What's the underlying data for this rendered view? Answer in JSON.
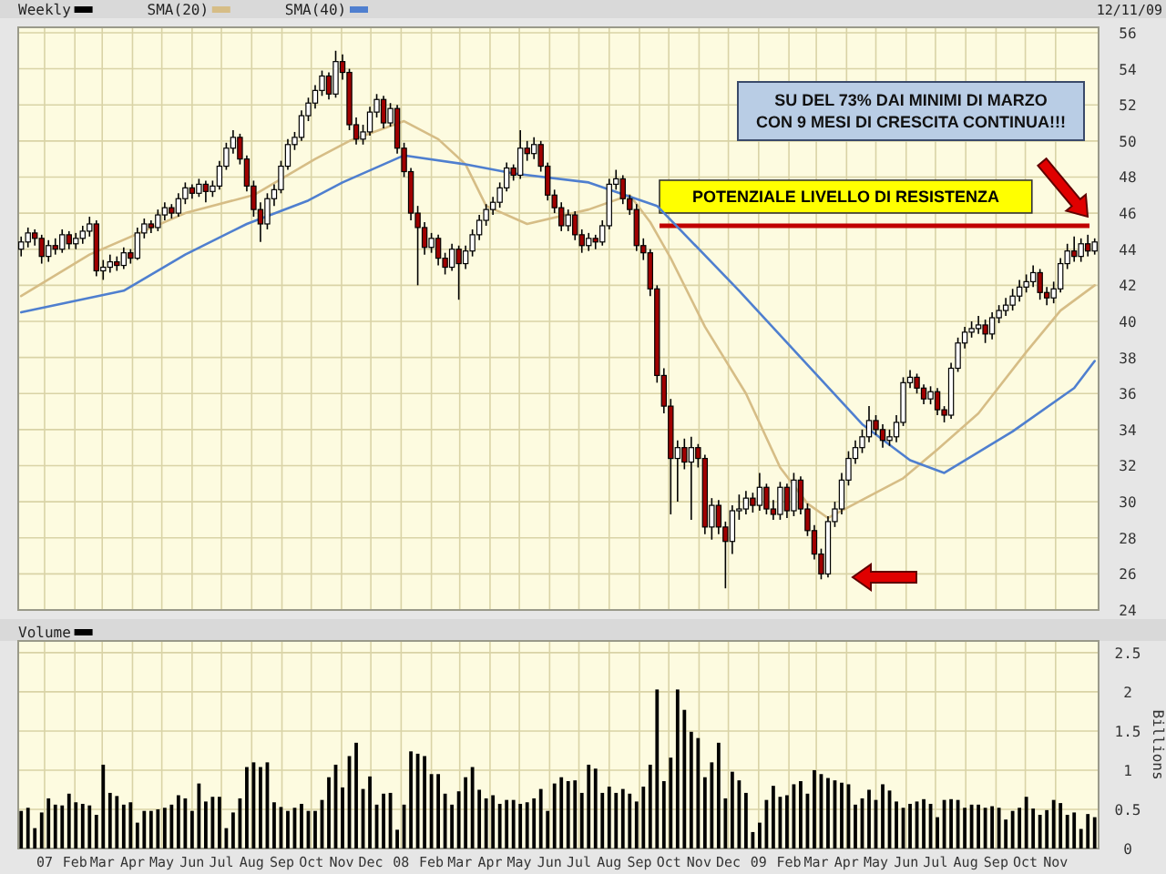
{
  "chart_data": [
    {
      "type": "candlestick",
      "x": [
        "2006-12-08",
        "2006-12-15",
        "2006-12-22",
        "2006-12-29",
        "2007-01-05",
        "2007-01-12",
        "2007-01-19",
        "2007-01-26",
        "2007-02-02",
        "2007-02-09",
        "2007-02-16",
        "2007-02-23",
        "2007-03-02",
        "2007-03-09",
        "2007-03-16",
        "2007-03-23",
        "2007-03-30",
        "2007-04-06",
        "2007-04-13",
        "2007-04-20",
        "2007-04-27",
        "2007-05-04",
        "2007-05-11",
        "2007-05-18",
        "2007-05-25",
        "2007-06-01",
        "2007-06-08",
        "2007-06-15",
        "2007-06-22",
        "2007-06-29",
        "2007-07-06",
        "2007-07-13",
        "2007-07-20",
        "2007-07-27",
        "2007-08-03",
        "2007-08-10",
        "2007-08-17",
        "2007-08-24",
        "2007-08-31",
        "2007-09-07",
        "2007-09-14",
        "2007-09-21",
        "2007-09-28",
        "2007-10-05",
        "2007-10-12",
        "2007-10-19",
        "2007-10-26",
        "2007-11-02",
        "2007-11-09",
        "2007-11-16",
        "2007-11-23",
        "2007-11-30",
        "2007-12-07",
        "2007-12-14",
        "2007-12-21",
        "2007-12-28",
        "2008-01-04",
        "2008-01-11",
        "2008-01-18",
        "2008-01-25",
        "2008-02-01",
        "2008-02-08",
        "2008-02-15",
        "2008-02-22",
        "2008-02-29",
        "2008-03-07",
        "2008-03-14",
        "2008-03-21",
        "2008-03-28",
        "2008-04-04",
        "2008-04-11",
        "2008-04-18",
        "2008-04-25",
        "2008-05-02",
        "2008-05-09",
        "2008-05-16",
        "2008-05-23",
        "2008-05-30",
        "2008-06-06",
        "2008-06-13",
        "2008-06-20",
        "2008-06-27",
        "2008-07-04",
        "2008-07-11",
        "2008-07-18",
        "2008-07-25",
        "2008-08-01",
        "2008-08-08",
        "2008-08-15",
        "2008-08-22",
        "2008-08-29",
        "2008-09-05",
        "2008-09-12",
        "2008-09-19",
        "2008-09-26",
        "2008-10-03",
        "2008-10-10",
        "2008-10-17",
        "2008-10-24",
        "2008-10-31",
        "2008-11-07",
        "2008-11-14",
        "2008-11-21",
        "2008-11-28",
        "2008-12-05",
        "2008-12-12",
        "2008-12-19",
        "2008-12-26",
        "2009-01-02",
        "2009-01-09",
        "2009-01-16",
        "2009-01-23",
        "2009-01-30",
        "2009-02-06",
        "2009-02-13",
        "2009-02-20",
        "2009-02-27",
        "2009-03-06",
        "2009-03-13",
        "2009-03-20",
        "2009-03-27",
        "2009-04-03",
        "2009-04-10",
        "2009-04-17",
        "2009-04-24",
        "2009-05-01",
        "2009-05-08",
        "2009-05-15",
        "2009-05-22",
        "2009-05-29",
        "2009-06-05",
        "2009-06-12",
        "2009-06-19",
        "2009-06-26",
        "2009-07-03",
        "2009-07-10",
        "2009-07-17",
        "2009-07-24",
        "2009-07-31",
        "2009-08-07",
        "2009-08-14",
        "2009-08-21",
        "2009-08-28",
        "2009-09-04",
        "2009-09-11",
        "2009-09-18",
        "2009-09-25",
        "2009-10-02",
        "2009-10-09",
        "2009-10-16",
        "2009-10-23",
        "2009-10-30",
        "2009-11-06",
        "2009-11-13",
        "2009-11-20",
        "2009-11-27",
        "2009-12-04",
        "2009-12-11"
      ],
      "legend_title": "Weekly",
      "series": [
        {
          "color": "#000000",
          "colors": [
            "#ffffff",
            "#ffffff",
            "#a00000",
            "#a00000",
            "#ffffff",
            "#a00000",
            "#ffffff",
            "#a00000",
            "#ffffff",
            "#ffffff",
            "#ffffff",
            "#a00000",
            "#ffffff",
            "#ffffff",
            "#a00000",
            "#ffffff",
            "#a00000",
            "#ffffff",
            "#ffffff",
            "#a00000",
            "#ffffff",
            "#ffffff",
            "#a00000",
            "#ffffff",
            "#ffffff",
            "#a00000",
            "#ffffff",
            "#a00000",
            "#ffffff",
            "#ffffff",
            "#ffffff",
            "#ffffff",
            "#a00000",
            "#a00000",
            "#a00000",
            "#a00000",
            "#ffffff",
            "#ffffff",
            "#ffffff",
            "#ffffff",
            "#ffffff",
            "#ffffff",
            "#ffffff",
            "#ffffff",
            "#ffffff",
            "#a00000",
            "#ffffff",
            "#a00000",
            "#a00000",
            "#a00000",
            "#ffffff",
            "#ffffff",
            "#ffffff",
            "#a00000",
            "#ffffff",
            "#a00000",
            "#a00000",
            "#a00000",
            "#a00000",
            "#a00000",
            "#ffffff",
            "#a00000",
            "#a00000",
            "#ffffff",
            "#a00000",
            "#ffffff",
            "#ffffff",
            "#ffffff",
            "#ffffff",
            "#ffffff",
            "#ffffff",
            "#ffffff",
            "#a00000",
            "#ffffff",
            "#a00000",
            "#ffffff",
            "#a00000",
            "#a00000",
            "#a00000",
            "#a00000",
            "#ffffff",
            "#a00000",
            "#a00000",
            "#ffffff",
            "#a00000",
            "#ffffff",
            "#ffffff",
            "#ffffff",
            "#a00000",
            "#a00000",
            "#a00000",
            "#a00000",
            "#a00000",
            "#a00000",
            "#a00000",
            "#a00000",
            "#ffffff",
            "#a00000",
            "#ffffff",
            "#a00000",
            "#a00000",
            "#ffffff",
            "#a00000",
            "#a00000",
            "#ffffff",
            "#ffffff",
            "#ffffff",
            "#a00000",
            "#ffffff",
            "#a00000",
            "#a00000",
            "#ffffff",
            "#a00000",
            "#ffffff",
            "#a00000",
            "#a00000",
            "#a00000",
            "#a00000",
            "#ffffff",
            "#ffffff",
            "#ffffff",
            "#ffffff",
            "#ffffff",
            "#ffffff",
            "#ffffff",
            "#a00000",
            "#a00000",
            "#ffffff",
            "#ffffff",
            "#ffffff",
            "#ffffff",
            "#a00000",
            "#a00000",
            "#ffffff",
            "#a00000",
            "#a00000",
            "#ffffff",
            "#ffffff",
            "#ffffff",
            "#ffffff",
            "#ffffff",
            "#a00000",
            "#ffffff",
            "#ffffff",
            "#ffffff",
            "#ffffff",
            "#ffffff",
            "#ffffff",
            "#ffffff",
            "#a00000",
            "#a00000",
            "#ffffff",
            "#ffffff",
            "#ffffff",
            "#a00000",
            "#ffffff",
            "#a00000",
            "#ffffff"
          ],
          "ohlc": [
            [
              44.0,
              44.7,
              43.6,
              44.4
            ],
            [
              44.4,
              45.2,
              44.1,
              44.9
            ],
            [
              44.9,
              45.1,
              44.2,
              44.6
            ],
            [
              44.6,
              44.8,
              43.2,
              43.6
            ],
            [
              43.6,
              44.5,
              43.3,
              44.2
            ],
            [
              44.2,
              44.6,
              43.7,
              44.0
            ],
            [
              44.0,
              45.1,
              43.8,
              44.8
            ],
            [
              44.8,
              45.0,
              44.0,
              44.3
            ],
            [
              44.3,
              44.9,
              44.0,
              44.6
            ],
            [
              44.6,
              45.3,
              44.3,
              45.0
            ],
            [
              45.0,
              45.8,
              44.7,
              45.4
            ],
            [
              45.4,
              45.6,
              42.5,
              42.8
            ],
            [
              42.8,
              43.4,
              42.3,
              43.0
            ],
            [
              43.0,
              43.7,
              42.7,
              43.3
            ],
            [
              43.3,
              43.6,
              42.8,
              43.1
            ],
            [
              43.1,
              44.1,
              42.9,
              43.8
            ],
            [
              43.8,
              44.0,
              43.2,
              43.5
            ],
            [
              43.5,
              45.2,
              43.4,
              44.9
            ],
            [
              44.9,
              45.7,
              44.6,
              45.4
            ],
            [
              45.4,
              45.6,
              44.9,
              45.2
            ],
            [
              45.2,
              46.2,
              45.0,
              45.9
            ],
            [
              45.9,
              46.6,
              45.6,
              46.3
            ],
            [
              46.3,
              46.5,
              45.7,
              46.0
            ],
            [
              46.0,
              47.1,
              45.8,
              46.8
            ],
            [
              46.8,
              47.7,
              46.5,
              47.4
            ],
            [
              47.4,
              47.6,
              46.8,
              47.1
            ],
            [
              47.1,
              47.9,
              46.9,
              47.6
            ],
            [
              47.6,
              47.8,
              46.6,
              47.2
            ],
            [
              47.2,
              47.8,
              46.9,
              47.5
            ],
            [
              47.5,
              48.9,
              47.3,
              48.6
            ],
            [
              48.6,
              49.9,
              48.4,
              49.6
            ],
            [
              49.6,
              50.6,
              49.3,
              50.2
            ],
            [
              50.2,
              50.4,
              48.7,
              49.0
            ],
            [
              49.0,
              49.2,
              47.2,
              47.5
            ],
            [
              47.5,
              47.8,
              45.8,
              46.2
            ],
            [
              46.2,
              46.6,
              44.4,
              45.4
            ],
            [
              45.4,
              47.1,
              45.1,
              46.8
            ],
            [
              46.8,
              47.6,
              46.4,
              47.3
            ],
            [
              47.3,
              48.9,
              47.1,
              48.6
            ],
            [
              48.6,
              50.1,
              48.4,
              49.8
            ],
            [
              49.8,
              50.5,
              49.5,
              50.2
            ],
            [
              50.2,
              51.7,
              50.0,
              51.4
            ],
            [
              51.4,
              52.4,
              51.1,
              52.1
            ],
            [
              52.1,
              53.1,
              51.8,
              52.8
            ],
            [
              52.8,
              53.9,
              52.5,
              53.6
            ],
            [
              53.6,
              53.8,
              52.3,
              52.6
            ],
            [
              52.6,
              55.0,
              52.4,
              54.4
            ],
            [
              54.4,
              54.8,
              53.4,
              53.8
            ],
            [
              53.8,
              54.0,
              50.6,
              50.9
            ],
            [
              50.9,
              51.3,
              49.8,
              50.1
            ],
            [
              50.1,
              50.9,
              49.8,
              50.5
            ],
            [
              50.5,
              51.9,
              50.3,
              51.6
            ],
            [
              51.6,
              52.6,
              51.3,
              52.3
            ],
            [
              52.3,
              52.5,
              50.7,
              51.0
            ],
            [
              51.0,
              52.1,
              50.8,
              51.8
            ],
            [
              51.8,
              52.0,
              49.3,
              49.6
            ],
            [
              49.6,
              49.9,
              48.0,
              48.3
            ],
            [
              48.3,
              48.5,
              45.6,
              46.0
            ],
            [
              46.0,
              46.4,
              42.0,
              45.2
            ],
            [
              45.2,
              45.5,
              43.7,
              44.1
            ],
            [
              44.1,
              44.9,
              43.8,
              44.6
            ],
            [
              44.6,
              44.8,
              43.1,
              43.5
            ],
            [
              43.5,
              43.8,
              42.6,
              43.0
            ],
            [
              43.0,
              44.3,
              42.8,
              44.0
            ],
            [
              44.0,
              44.2,
              41.2,
              43.2
            ],
            [
              43.2,
              44.2,
              42.9,
              43.9
            ],
            [
              43.9,
              45.1,
              43.6,
              44.8
            ],
            [
              44.8,
              45.9,
              44.5,
              45.6
            ],
            [
              45.6,
              46.5,
              45.3,
              46.2
            ],
            [
              46.2,
              46.9,
              45.9,
              46.6
            ],
            [
              46.6,
              47.7,
              46.3,
              47.4
            ],
            [
              47.4,
              48.8,
              47.2,
              48.5
            ],
            [
              48.5,
              48.7,
              47.8,
              48.1
            ],
            [
              48.1,
              50.6,
              47.9,
              49.6
            ],
            [
              49.6,
              50.0,
              48.9,
              49.3
            ],
            [
              49.3,
              50.2,
              49.0,
              49.8
            ],
            [
              49.8,
              50.0,
              48.3,
              48.6
            ],
            [
              48.6,
              48.8,
              46.7,
              47.0
            ],
            [
              47.0,
              47.3,
              46.0,
              46.3
            ],
            [
              46.3,
              46.6,
              45.0,
              45.3
            ],
            [
              45.3,
              46.2,
              45.0,
              45.9
            ],
            [
              45.9,
              46.1,
              44.5,
              44.8
            ],
            [
              44.8,
              45.1,
              43.8,
              44.2
            ],
            [
              44.2,
              44.9,
              43.9,
              44.6
            ],
            [
              44.6,
              44.8,
              44.0,
              44.4
            ],
            [
              44.4,
              45.6,
              44.2,
              45.3
            ],
            [
              45.3,
              47.9,
              45.1,
              47.6
            ],
            [
              47.6,
              48.4,
              47.3,
              47.9
            ],
            [
              47.9,
              48.1,
              46.5,
              46.8
            ],
            [
              46.8,
              47.0,
              45.9,
              46.2
            ],
            [
              46.2,
              46.5,
              43.9,
              44.2
            ],
            [
              44.2,
              44.6,
              43.4,
              43.8
            ],
            [
              43.8,
              44.0,
              41.4,
              41.8
            ],
            [
              41.8,
              42.0,
              36.6,
              37.0
            ],
            [
              37.0,
              37.4,
              34.9,
              35.3
            ],
            [
              35.3,
              35.7,
              29.3,
              32.4
            ],
            [
              32.4,
              33.4,
              30.0,
              33.0
            ],
            [
              33.0,
              33.5,
              31.8,
              32.2
            ],
            [
              32.2,
              33.6,
              29.0,
              33.0
            ],
            [
              33.0,
              33.2,
              31.9,
              32.4
            ],
            [
              32.4,
              32.6,
              28.2,
              28.6
            ],
            [
              28.6,
              30.2,
              27.9,
              29.8
            ],
            [
              29.8,
              30.1,
              28.2,
              28.6
            ],
            [
              28.6,
              28.9,
              25.2,
              27.8
            ],
            [
              27.8,
              29.8,
              27.1,
              29.5
            ],
            [
              29.5,
              30.4,
              29.0,
              29.6
            ],
            [
              29.6,
              30.6,
              29.3,
              30.2
            ],
            [
              30.2,
              30.5,
              29.4,
              29.8
            ],
            [
              29.8,
              31.6,
              29.5,
              30.8
            ],
            [
              30.8,
              31.0,
              29.3,
              29.6
            ],
            [
              29.6,
              30.1,
              29.0,
              29.3
            ],
            [
              29.3,
              31.1,
              29.0,
              30.8
            ],
            [
              30.8,
              31.0,
              29.1,
              29.5
            ],
            [
              29.5,
              31.6,
              29.2,
              31.2
            ],
            [
              31.2,
              31.4,
              29.3,
              29.6
            ],
            [
              29.6,
              29.9,
              28.1,
              28.4
            ],
            [
              28.4,
              28.7,
              26.8,
              27.1
            ],
            [
              27.1,
              27.4,
              25.7,
              26.0
            ],
            [
              26.0,
              29.2,
              25.8,
              28.9
            ],
            [
              28.9,
              30.0,
              28.6,
              29.6
            ],
            [
              29.6,
              31.6,
              29.3,
              31.2
            ],
            [
              31.2,
              32.8,
              30.9,
              32.4
            ],
            [
              32.4,
              33.4,
              32.1,
              33.0
            ],
            [
              33.0,
              34.0,
              32.7,
              33.6
            ],
            [
              33.6,
              35.3,
              33.3,
              34.5
            ],
            [
              34.5,
              34.8,
              33.7,
              34.0
            ],
            [
              34.0,
              34.3,
              33.0,
              33.4
            ],
            [
              33.4,
              34.0,
              33.1,
              33.6
            ],
            [
              33.6,
              34.8,
              33.3,
              34.4
            ],
            [
              34.4,
              36.9,
              34.2,
              36.6
            ],
            [
              36.6,
              37.3,
              36.3,
              36.9
            ],
            [
              36.9,
              37.1,
              36.0,
              36.3
            ],
            [
              36.3,
              36.5,
              35.4,
              35.7
            ],
            [
              35.7,
              36.4,
              35.4,
              36.1
            ],
            [
              36.1,
              36.3,
              34.8,
              35.1
            ],
            [
              35.1,
              35.3,
              34.4,
              34.8
            ],
            [
              34.8,
              37.7,
              34.6,
              37.4
            ],
            [
              37.4,
              39.1,
              37.2,
              38.8
            ],
            [
              38.8,
              39.7,
              38.5,
              39.4
            ],
            [
              39.4,
              40.0,
              39.1,
              39.6
            ],
            [
              39.6,
              40.3,
              39.3,
              39.8
            ],
            [
              39.8,
              40.1,
              38.8,
              39.3
            ],
            [
              39.3,
              40.5,
              39.0,
              40.2
            ],
            [
              40.2,
              40.9,
              39.9,
              40.6
            ],
            [
              40.6,
              41.3,
              40.3,
              40.9
            ],
            [
              40.9,
              41.8,
              40.6,
              41.4
            ],
            [
              41.4,
              42.3,
              41.1,
              41.9
            ],
            [
              41.9,
              42.6,
              41.6,
              42.2
            ],
            [
              42.2,
              43.1,
              41.9,
              42.7
            ],
            [
              42.7,
              42.9,
              41.2,
              41.6
            ],
            [
              41.6,
              41.9,
              40.9,
              41.3
            ],
            [
              41.3,
              42.2,
              41.0,
              41.8
            ],
            [
              41.8,
              43.5,
              41.6,
              43.2
            ],
            [
              43.2,
              44.3,
              42.9,
              43.9
            ],
            [
              43.9,
              44.7,
              43.3,
              43.6
            ],
            [
              43.6,
              44.6,
              43.3,
              44.3
            ],
            [
              44.3,
              44.8,
              43.6,
              43.9
            ],
            [
              43.9,
              44.6,
              43.7,
              44.4
            ]
          ]
        },
        {
          "type": "line",
          "name": "SMA(20)",
          "color": "#d6bd86",
          "x": [
            "2006-12-08",
            "2007-02-16",
            "2007-05-25",
            "2007-08-03",
            "2007-10-05",
            "2007-11-09",
            "2008-01-04",
            "2008-02-08",
            "2008-03-07",
            "2008-03-28",
            "2008-05-09",
            "2008-07-11",
            "2008-08-22",
            "2008-09-12",
            "2008-10-03",
            "2008-11-07",
            "2008-12-19",
            "2009-01-23",
            "2009-02-20",
            "2009-03-13",
            "2009-04-24",
            "2009-05-29",
            "2009-07-03",
            "2009-08-14",
            "2009-10-02",
            "2009-11-06",
            "2009-12-11"
          ],
          "values": [
            41.4,
            43.7,
            46.0,
            47.0,
            49.0,
            50.0,
            51.1,
            50.1,
            48.7,
            46.4,
            45.4,
            46.2,
            47.0,
            45.5,
            43.5,
            39.7,
            36.0,
            31.9,
            29.9,
            29.1,
            30.3,
            31.3,
            32.9,
            34.9,
            38.3,
            40.6,
            42.0
          ]
        },
        {
          "type": "line",
          "name": "SMA(40)",
          "color": "#4f7fcf",
          "x": [
            "2006-12-08",
            "2007-03-23",
            "2007-05-25",
            "2007-07-27",
            "2007-09-28",
            "2007-11-02",
            "2008-01-04",
            "2008-03-07",
            "2008-04-25",
            "2008-07-11",
            "2008-09-19",
            "2008-12-12",
            "2009-02-13",
            "2009-04-17",
            "2009-06-05",
            "2009-07-10",
            "2009-09-18",
            "2009-11-20",
            "2009-12-11"
          ],
          "values": [
            40.5,
            41.7,
            43.7,
            45.4,
            46.7,
            47.7,
            49.2,
            48.7,
            48.2,
            47.7,
            46.4,
            41.7,
            38.0,
            34.3,
            32.3,
            31.6,
            33.9,
            36.3,
            37.8
          ]
        }
      ],
      "xlim": [
        "2006-12-05",
        "2009-12-15"
      ],
      "ylim": [
        24,
        56.3
      ],
      "xticks": [
        {
          "value": "2007-01-01",
          "label": null
        },
        {
          "value": "2007-02-01",
          "label": null
        },
        {
          "value": "2007-03-01",
          "label": null
        },
        {
          "value": "2007-04-01",
          "label": null
        },
        {
          "value": "2007-05-01",
          "label": null
        },
        {
          "value": "2007-06-01",
          "label": null
        },
        {
          "value": "2007-07-01",
          "label": null
        },
        {
          "value": "2007-08-01",
          "label": null
        },
        {
          "value": "2007-09-01",
          "label": null
        },
        {
          "value": "2007-10-01",
          "label": null
        },
        {
          "value": "2007-11-01",
          "label": null
        },
        {
          "value": "2007-12-01",
          "label": null
        },
        {
          "value": "2008-01-01",
          "label": null
        },
        {
          "value": "2008-02-01",
          "label": null
        },
        {
          "value": "2008-03-01",
          "label": null
        },
        {
          "value": "2008-04-01",
          "label": null
        },
        {
          "value": "2008-05-01",
          "label": null
        },
        {
          "value": "2008-06-01",
          "label": null
        },
        {
          "value": "2008-07-01",
          "label": null
        },
        {
          "value": "2008-08-01",
          "label": null
        },
        {
          "value": "2008-09-01",
          "label": null
        },
        {
          "value": "2008-10-01",
          "label": null
        },
        {
          "value": "2008-11-01",
          "label": null
        },
        {
          "value": "2008-12-01",
          "label": null
        },
        {
          "value": "2009-01-01",
          "label": null
        },
        {
          "value": "2009-02-01",
          "label": null
        },
        {
          "value": "2009-03-01",
          "label": null
        },
        {
          "value": "2009-04-01",
          "label": null
        },
        {
          "value": "2009-05-01",
          "label": null
        },
        {
          "value": "2009-06-01",
          "label": null
        },
        {
          "value": "2009-07-01",
          "label": null
        },
        {
          "value": "2009-08-01",
          "label": null
        },
        {
          "value": "2009-09-01",
          "label": null
        },
        {
          "value": "2009-10-01",
          "label": null
        },
        {
          "value": "2009-11-01",
          "label": null
        }
      ],
      "yticks": [
        24,
        26,
        28,
        30,
        32,
        34,
        36,
        38,
        40,
        42,
        44,
        46,
        48,
        50,
        52,
        54,
        56
      ],
      "grid": true,
      "tick_labels": "y",
      "legend": "top left",
      "ref_lines": [
        {
          "axis": "y",
          "value": 45.3,
          "label": "POTENZIALE LIVELLO DI RESISTENZA",
          "color": "#c00000"
        }
      ],
      "annotations": [
        "12/11/09",
        "SU DEL 73% DAI MINIMI DI MARZO\nCON 9 MESI DI CRESCITA CONTINUA!!!"
      ]
    },
    {
      "type": "bar",
      "x": [
        "2006-12-08",
        "2006-12-15",
        "2006-12-22",
        "2006-12-29",
        "2007-01-05",
        "2007-01-12",
        "2007-01-19",
        "2007-01-26",
        "2007-02-02",
        "2007-02-09",
        "2007-02-16",
        "2007-02-23",
        "2007-03-02",
        "2007-03-09",
        "2007-03-16",
        "2007-03-23",
        "2007-03-30",
        "2007-04-06",
        "2007-04-13",
        "2007-04-20",
        "2007-04-27",
        "2007-05-04",
        "2007-05-11",
        "2007-05-18",
        "2007-05-25",
        "2007-06-01",
        "2007-06-08",
        "2007-06-15",
        "2007-06-22",
        "2007-06-29",
        "2007-07-06",
        "2007-07-13",
        "2007-07-20",
        "2007-07-27",
        "2007-08-03",
        "2007-08-10",
        "2007-08-17",
        "2007-08-24",
        "2007-08-31",
        "2007-09-07",
        "2007-09-14",
        "2007-09-21",
        "2007-09-28",
        "2007-10-05",
        "2007-10-12",
        "2007-10-19",
        "2007-10-26",
        "2007-11-02",
        "2007-11-09",
        "2007-11-16",
        "2007-11-23",
        "2007-11-30",
        "2007-12-07",
        "2007-12-14",
        "2007-12-21",
        "2007-12-28",
        "2008-01-04",
        "2008-01-11",
        "2008-01-18",
        "2008-01-25",
        "2008-02-01",
        "2008-02-08",
        "2008-02-15",
        "2008-02-22",
        "2008-02-29",
        "2008-03-07",
        "2008-03-14",
        "2008-03-21",
        "2008-03-28",
        "2008-04-04",
        "2008-04-11",
        "2008-04-18",
        "2008-04-25",
        "2008-05-02",
        "2008-05-09",
        "2008-05-16",
        "2008-05-23",
        "2008-05-30",
        "2008-06-06",
        "2008-06-13",
        "2008-06-20",
        "2008-06-27",
        "2008-07-04",
        "2008-07-11",
        "2008-07-18",
        "2008-07-25",
        "2008-08-01",
        "2008-08-08",
        "2008-08-15",
        "2008-08-22",
        "2008-08-29",
        "2008-09-05",
        "2008-09-12",
        "2008-09-19",
        "2008-09-26",
        "2008-10-03",
        "2008-10-10",
        "2008-10-17",
        "2008-10-24",
        "2008-10-31",
        "2008-11-07",
        "2008-11-14",
        "2008-11-21",
        "2008-11-28",
        "2008-12-05",
        "2008-12-12",
        "2008-12-19",
        "2008-12-26",
        "2009-01-02",
        "2009-01-09",
        "2009-01-16",
        "2009-01-23",
        "2009-01-30",
        "2009-02-06",
        "2009-02-13",
        "2009-02-20",
        "2009-02-27",
        "2009-03-06",
        "2009-03-13",
        "2009-03-20",
        "2009-03-27",
        "2009-04-03",
        "2009-04-10",
        "2009-04-17",
        "2009-04-24",
        "2009-05-01",
        "2009-05-08",
        "2009-05-15",
        "2009-05-22",
        "2009-05-29",
        "2009-06-05",
        "2009-06-12",
        "2009-06-19",
        "2009-06-26",
        "2009-07-03",
        "2009-07-10",
        "2009-07-17",
        "2009-07-24",
        "2009-07-31",
        "2009-08-07",
        "2009-08-14",
        "2009-08-21",
        "2009-08-28",
        "2009-09-04",
        "2009-09-11",
        "2009-09-18",
        "2009-09-25",
        "2009-10-02",
        "2009-10-09",
        "2009-10-16",
        "2009-10-23",
        "2009-10-30",
        "2009-11-06",
        "2009-11-13",
        "2009-11-20",
        "2009-11-27",
        "2009-12-04",
        "2009-12-11"
      ],
      "series": [
        {
          "name": "Volume",
          "color": "#000000",
          "values": [
            0.48,
            0.52,
            0.26,
            0.46,
            0.64,
            0.56,
            0.55,
            0.7,
            0.59,
            0.57,
            0.55,
            0.43,
            1.07,
            0.71,
            0.67,
            0.56,
            0.59,
            0.33,
            0.48,
            0.48,
            0.5,
            0.52,
            0.56,
            0.68,
            0.64,
            0.48,
            0.83,
            0.6,
            0.66,
            0.66,
            0.26,
            0.46,
            0.64,
            1.04,
            1.1,
            1.04,
            1.1,
            0.59,
            0.53,
            0.48,
            0.52,
            0.57,
            0.48,
            0.48,
            0.62,
            0.91,
            1.07,
            0.78,
            1.18,
            1.35,
            0.76,
            0.92,
            0.56,
            0.7,
            0.71,
            0.24,
            0.56,
            1.24,
            1.21,
            1.18,
            0.95,
            0.95,
            0.7,
            0.56,
            0.73,
            0.91,
            1.04,
            0.75,
            0.64,
            0.68,
            0.57,
            0.62,
            0.62,
            0.57,
            0.59,
            0.64,
            0.76,
            0.48,
            0.83,
            0.91,
            0.86,
            0.87,
            0.71,
            1.07,
            1.02,
            0.71,
            0.79,
            0.71,
            0.76,
            0.7,
            0.6,
            0.79,
            1.07,
            2.03,
            0.86,
            1.16,
            2.03,
            1.77,
            1.49,
            1.41,
            0.91,
            1.1,
            1.35,
            0.64,
            0.98,
            0.87,
            0.71,
            0.21,
            0.33,
            0.62,
            0.8,
            0.66,
            0.68,
            0.82,
            0.86,
            0.7,
            1.0,
            0.95,
            0.9,
            0.87,
            0.84,
            0.82,
            0.56,
            0.64,
            0.75,
            0.62,
            0.82,
            0.74,
            0.6,
            0.52,
            0.57,
            0.6,
            0.63,
            0.57,
            0.4,
            0.62,
            0.63,
            0.62,
            0.52,
            0.56,
            0.56,
            0.52,
            0.54,
            0.52,
            0.37,
            0.48,
            0.52,
            0.66,
            0.51,
            0.43,
            0.49,
            0.62,
            0.58,
            0.43,
            0.46,
            0.25,
            0.44,
            0.4
          ]
        }
      ],
      "xlim": [
        "2006-12-05",
        "2009-12-15"
      ],
      "ylim": [
        0,
        2.65
      ],
      "xticks": [
        {
          "value": "2007-01-01",
          "label": "07"
        },
        {
          "value": "2007-02-01",
          "label": "Feb"
        },
        {
          "value": "2007-03-01",
          "label": "Mar"
        },
        {
          "value": "2007-04-01",
          "label": "Apr"
        },
        {
          "value": "2007-05-01",
          "label": "May"
        },
        {
          "value": "2007-06-01",
          "label": "Jun"
        },
        {
          "value": "2007-07-01",
          "label": "Jul"
        },
        {
          "value": "2007-08-01",
          "label": "Aug"
        },
        {
          "value": "2007-09-01",
          "label": "Sep"
        },
        {
          "value": "2007-10-01",
          "label": "Oct"
        },
        {
          "value": "2007-11-01",
          "label": "Nov"
        },
        {
          "value": "2007-12-01",
          "label": "Dec"
        },
        {
          "value": "2008-01-01",
          "label": "08"
        },
        {
          "value": "2008-02-01",
          "label": "Feb"
        },
        {
          "value": "2008-03-01",
          "label": "Mar"
        },
        {
          "value": "2008-04-01",
          "label": "Apr"
        },
        {
          "value": "2008-05-01",
          "label": "May"
        },
        {
          "value": "2008-06-01",
          "label": "Jun"
        },
        {
          "value": "2008-07-01",
          "label": "Jul"
        },
        {
          "value": "2008-08-01",
          "label": "Aug"
        },
        {
          "value": "2008-09-01",
          "label": "Sep"
        },
        {
          "value": "2008-10-01",
          "label": "Oct"
        },
        {
          "value": "2008-11-01",
          "label": "Nov"
        },
        {
          "value": "2008-12-01",
          "label": "Dec"
        },
        {
          "value": "2009-01-01",
          "label": "09"
        },
        {
          "value": "2009-02-01",
          "label": "Feb"
        },
        {
          "value": "2009-03-01",
          "label": "Mar"
        },
        {
          "value": "2009-04-01",
          "label": "Apr"
        },
        {
          "value": "2009-05-01",
          "label": "May"
        },
        {
          "value": "2009-06-01",
          "label": "Jun"
        },
        {
          "value": "2009-07-01",
          "label": "Jul"
        },
        {
          "value": "2009-08-01",
          "label": "Aug"
        },
        {
          "value": "2009-09-01",
          "label": "Sep"
        },
        {
          "value": "2009-10-01",
          "label": "Oct"
        },
        {
          "value": "2009-11-01",
          "label": "Nov"
        }
      ],
      "yticks": [
        0,
        0.5,
        1,
        1.5,
        2,
        2.5
      ],
      "grid": true,
      "legend": "top left",
      "ylabel": "Billions"
    }
  ]
}
